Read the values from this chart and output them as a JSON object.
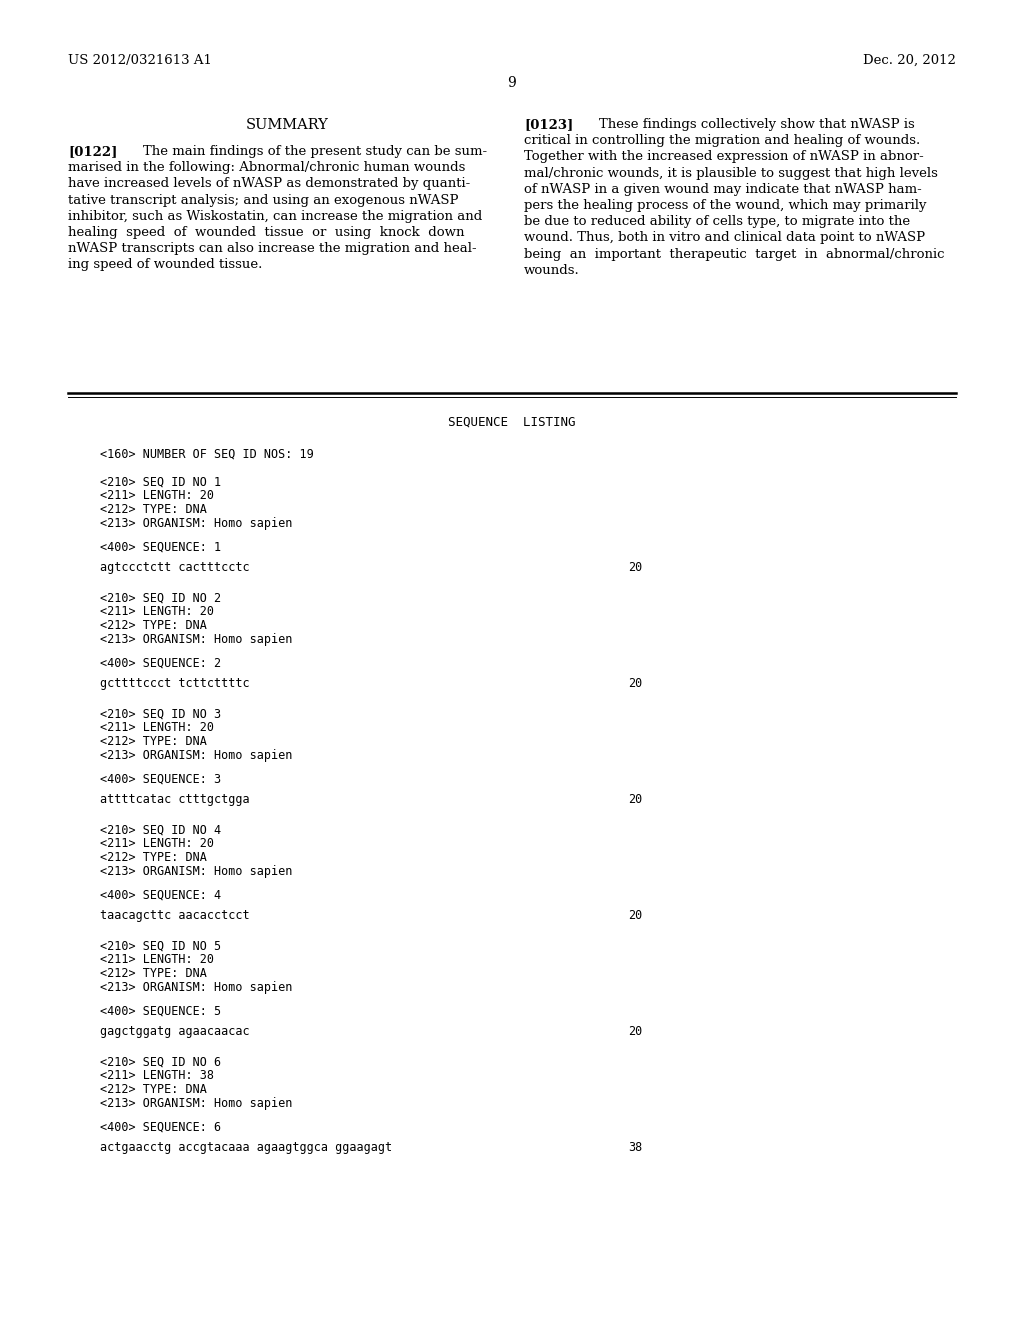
{
  "background_color": "#ffffff",
  "header_left": "US 2012/0321613 A1",
  "header_right": "Dec. 20, 2012",
  "page_number": "9",
  "summary_title": "SUMMARY",
  "para_0122_label": "[0122]",
  "para_0122_text": "The main findings of the present study can be summarised in the following: Abnormal/chronic human wounds have increased levels of nWASP as demonstrated by quantitative transcript analysis; and using an exogenous nWASP inhibitor, such as Wiskostatin, can increase the migration and healing speed of wounded tissue or using knock down nWASP transcripts can also increase the migration and healing speed of wounded tissue.",
  "para_0123_label": "[0123]",
  "para_0123_text": "These findings collectively show that nWASP is critical in controlling the migration and healing of wounds. Together with the increased expression of nWASP in abnormal/chronic wounds, it is plausible to suggest that high levels of nWASP in a given wound may indicate that nWASP hampers the healing process of the wound, which may primarily be due to reduced ability of cells type, to migrate into the wound. Thus, both in vitro and clinical data point to nWASP being an important therapeutic target in abnormal/chronic wounds.",
  "seq_listing_title": "SEQUENCE  LISTING",
  "seq160": "<160> NUMBER OF SEQ ID NOS: 19",
  "sequence_blocks": [
    {
      "id_lines": [
        "<210> SEQ ID NO 1",
        "<211> LENGTH: 20",
        "<212> TYPE: DNA",
        "<213> ORGANISM: Homo sapien"
      ],
      "meta_line": "<400> SEQUENCE: 1",
      "seq_line": "agtccctctt cactttcctc",
      "seq_num": "20"
    },
    {
      "id_lines": [
        "<210> SEQ ID NO 2",
        "<211> LENGTH: 20",
        "<212> TYPE: DNA",
        "<213> ORGANISM: Homo sapien"
      ],
      "meta_line": "<400> SEQUENCE: 2",
      "seq_line": "gcttttccct tcttcttttc",
      "seq_num": "20"
    },
    {
      "id_lines": [
        "<210> SEQ ID NO 3",
        "<211> LENGTH: 20",
        "<212> TYPE: DNA",
        "<213> ORGANISM: Homo sapien"
      ],
      "meta_line": "<400> SEQUENCE: 3",
      "seq_line": "attttcatac ctttgctgga",
      "seq_num": "20"
    },
    {
      "id_lines": [
        "<210> SEQ ID NO 4",
        "<211> LENGTH: 20",
        "<212> TYPE: DNA",
        "<213> ORGANISM: Homo sapien"
      ],
      "meta_line": "<400> SEQUENCE: 4",
      "seq_line": "taacagcttc aacacctcct",
      "seq_num": "20"
    },
    {
      "id_lines": [
        "<210> SEQ ID NO 5",
        "<211> LENGTH: 20",
        "<212> TYPE: DNA",
        "<213> ORGANISM: Homo sapien"
      ],
      "meta_line": "<400> SEQUENCE: 5",
      "seq_line": "gagctggatg agaacaacac",
      "seq_num": "20"
    },
    {
      "id_lines": [
        "<210> SEQ ID NO 6",
        "<211> LENGTH: 38",
        "<212> TYPE: DNA",
        "<213> ORGANISM: Homo sapien"
      ],
      "meta_line": "<400> SEQUENCE: 6",
      "seq_line": "actgaacctg accgtacaaa agaagtggca ggaagagt",
      "seq_num": "38"
    }
  ],
  "para_0122_lines": [
    "[0122]    The main findings of the present study can be sum-",
    "marised in the following: Abnormal/chronic human wounds",
    "have increased levels of nWASP as demonstrated by quanti-",
    "tative transcript analysis; and using an exogenous nWASP",
    "inhibitor, such as Wiskostatin, can increase the migration and",
    "healing  speed  of  wounded  tissue  or  using  knock  down",
    "nWASP transcripts can also increase the migration and heal-",
    "ing speed of wounded tissue."
  ],
  "para_0123_lines": [
    "[0123]    These findings collectively show that nWASP is",
    "critical in controlling the migration and healing of wounds.",
    "Together with the increased expression of nWASP in abnor-",
    "mal/chronic wounds, it is plausible to suggest that high levels",
    "of nWASP in a given wound may indicate that nWASP ham-",
    "pers the healing process of the wound, which may primarily",
    "be due to reduced ability of cells type, to migrate into the",
    "wound. Thus, both in vitro and clinical data point to nWASP",
    "being  an  important  therapeutic  target  in  abnormal/chronic",
    "wounds."
  ]
}
